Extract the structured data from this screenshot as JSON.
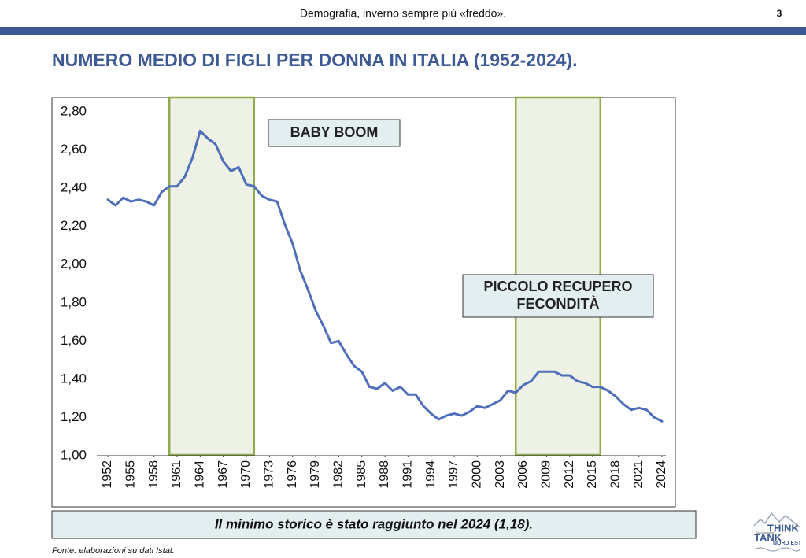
{
  "header": {
    "title": "Demografia, inverno sempre più «freddo».",
    "page": "3"
  },
  "chart_data": {
    "type": "line",
    "title": "NUMERO MEDIO DI FIGLI PER DONNA IN ITALIA (1952-2024).",
    "x": [
      1952,
      1953,
      1954,
      1955,
      1956,
      1957,
      1958,
      1959,
      1960,
      1961,
      1962,
      1963,
      1964,
      1965,
      1966,
      1967,
      1968,
      1969,
      1970,
      1971,
      1972,
      1973,
      1974,
      1975,
      1976,
      1977,
      1978,
      1979,
      1980,
      1981,
      1982,
      1983,
      1984,
      1985,
      1986,
      1987,
      1988,
      1989,
      1990,
      1991,
      1992,
      1993,
      1994,
      1995,
      1996,
      1997,
      1998,
      1999,
      2000,
      2001,
      2002,
      2003,
      2004,
      2005,
      2006,
      2007,
      2008,
      2009,
      2010,
      2011,
      2012,
      2013,
      2014,
      2015,
      2016,
      2017,
      2018,
      2019,
      2020,
      2021,
      2022,
      2023,
      2024
    ],
    "values": [
      2.34,
      2.31,
      2.35,
      2.33,
      2.34,
      2.33,
      2.31,
      2.38,
      2.41,
      2.41,
      2.46,
      2.56,
      2.7,
      2.66,
      2.63,
      2.54,
      2.49,
      2.51,
      2.42,
      2.41,
      2.36,
      2.34,
      2.33,
      2.21,
      2.11,
      1.97,
      1.87,
      1.76,
      1.68,
      1.59,
      1.6,
      1.53,
      1.47,
      1.44,
      1.36,
      1.35,
      1.38,
      1.34,
      1.36,
      1.32,
      1.32,
      1.26,
      1.22,
      1.19,
      1.21,
      1.22,
      1.21,
      1.23,
      1.26,
      1.25,
      1.27,
      1.29,
      1.34,
      1.33,
      1.37,
      1.39,
      1.44,
      1.44,
      1.44,
      1.42,
      1.42,
      1.39,
      1.38,
      1.36,
      1.36,
      1.34,
      1.31,
      1.27,
      1.24,
      1.25,
      1.24,
      1.2,
      1.18
    ],
    "color": "#4f6fb8",
    "xlim": [
      1952,
      2024
    ],
    "xticks": [
      1952,
      1955,
      1958,
      1961,
      1964,
      1967,
      1970,
      1973,
      1976,
      1979,
      1982,
      1985,
      1988,
      1991,
      1994,
      1997,
      2000,
      2003,
      2006,
      2009,
      2012,
      2015,
      2018,
      2021,
      2024
    ],
    "ylim": [
      1.0,
      2.8
    ],
    "yticks": [
      {
        "value": 1.0,
        "label": "1,00"
      },
      {
        "value": 1.2,
        "label": "1,20"
      },
      {
        "value": 1.4,
        "label": "1,40"
      },
      {
        "value": 1.6,
        "label": "1,60"
      },
      {
        "value": 1.8,
        "label": "1,80"
      },
      {
        "value": 2.0,
        "label": "2,00"
      },
      {
        "value": 2.2,
        "label": "2,20"
      },
      {
        "value": 2.4,
        "label": "2,40"
      },
      {
        "value": 2.6,
        "label": "2,60"
      },
      {
        "value": 2.8,
        "label": "2,80"
      }
    ],
    "spans": [
      {
        "from": 1960,
        "to": 1971
      },
      {
        "from": 2005,
        "to": 2016
      }
    ],
    "annotations": [
      {
        "lines": [
          "BABY BOOM"
        ]
      },
      {
        "lines": [
          "PICCOLO RECUPERO",
          "FECONDITÀ"
        ]
      }
    ]
  },
  "footer": {
    "note": "Il minimo storico è stato raggiunto nel 2024 (1,18).",
    "source": "Fonte: elaborazioni su dati Istat."
  },
  "logo": {
    "small": "Associazione",
    "line1": "THINK",
    "line2": "TANK",
    "line3": "NORD EST"
  }
}
